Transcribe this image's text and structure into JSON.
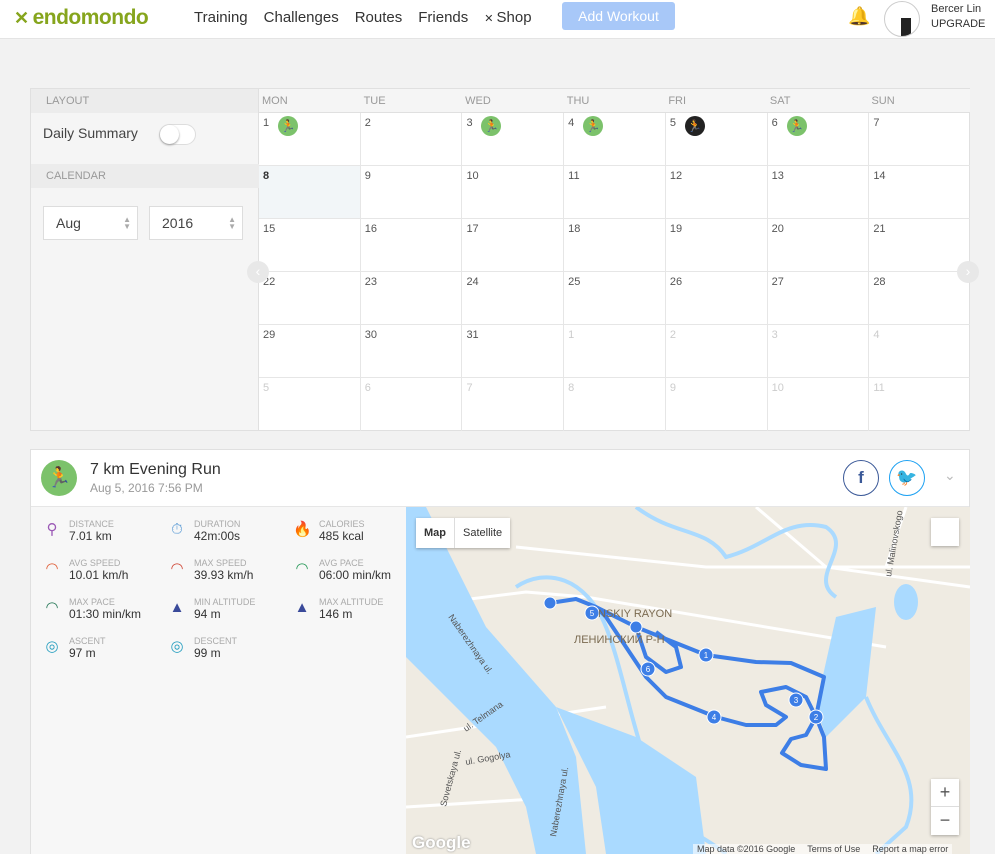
{
  "header": {
    "brand": "endomondo",
    "nav": [
      "Training",
      "Challenges",
      "Routes",
      "Friends",
      "Shop"
    ],
    "add_workout": "Add Workout",
    "user_name": "Bercer Lin",
    "upgrade": "UPGRADE",
    "accent": "#86a51d"
  },
  "sidebar": {
    "layout_label": "LAYOUT",
    "daily_summary": "Daily Summary",
    "daily_summary_on": false,
    "calendar_label": "CALENDAR",
    "month": "Aug",
    "year": "2016"
  },
  "calendar": {
    "days": [
      "MON",
      "TUE",
      "WED",
      "THU",
      "FRI",
      "SAT",
      "SUN"
    ],
    "weeks": [
      [
        {
          "d": "1",
          "w": "green"
        },
        {
          "d": "2"
        },
        {
          "d": "3",
          "w": "green"
        },
        {
          "d": "4",
          "w": "green"
        },
        {
          "d": "5",
          "w": "dark"
        },
        {
          "d": "6",
          "w": "green"
        },
        {
          "d": "7"
        }
      ],
      [
        {
          "d": "8",
          "today": true
        },
        {
          "d": "9"
        },
        {
          "d": "10"
        },
        {
          "d": "11"
        },
        {
          "d": "12"
        },
        {
          "d": "13"
        },
        {
          "d": "14"
        }
      ],
      [
        {
          "d": "15"
        },
        {
          "d": "16"
        },
        {
          "d": "17"
        },
        {
          "d": "18"
        },
        {
          "d": "19"
        },
        {
          "d": "20"
        },
        {
          "d": "21"
        }
      ],
      [
        {
          "d": "22"
        },
        {
          "d": "23"
        },
        {
          "d": "24"
        },
        {
          "d": "25"
        },
        {
          "d": "26"
        },
        {
          "d": "27"
        },
        {
          "d": "28"
        }
      ],
      [
        {
          "d": "29"
        },
        {
          "d": "30"
        },
        {
          "d": "31"
        },
        {
          "d": "1",
          "o": true
        },
        {
          "d": "2",
          "o": true
        },
        {
          "d": "3",
          "o": true
        },
        {
          "d": "4",
          "o": true
        }
      ],
      [
        {
          "d": "5",
          "o": true
        },
        {
          "d": "6",
          "o": true
        },
        {
          "d": "7",
          "o": true
        },
        {
          "d": "8",
          "o": true
        },
        {
          "d": "9",
          "o": true
        },
        {
          "d": "10",
          "o": true
        },
        {
          "d": "11",
          "o": true
        }
      ]
    ]
  },
  "workout": {
    "title": "7 km Evening Run",
    "date": "Aug 5, 2016 7:56 PM",
    "stats": [
      {
        "label": "DISTANCE",
        "value": "7.01 km",
        "icon": "distance-icon",
        "color": "#9b59b6"
      },
      {
        "label": "DURATION",
        "value": "42m:00s",
        "icon": "stopwatch-icon",
        "color": "#5b9bd5"
      },
      {
        "label": "CALORIES",
        "value": "485 kcal",
        "icon": "flame-icon",
        "color": "#f07040"
      },
      {
        "label": "AVG SPEED",
        "value": "10.01 km/h",
        "icon": "speedometer-icon",
        "color": "#e0603a"
      },
      {
        "label": "MAX SPEED",
        "value": "39.93 km/h",
        "icon": "speedometer-icon",
        "color": "#d04a3a"
      },
      {
        "label": "AVG PACE",
        "value": "06:00 min/km",
        "icon": "pace-icon",
        "color": "#2a9a5a"
      },
      {
        "label": "MAX PACE",
        "value": "01:30 min/km",
        "icon": "pace-icon",
        "color": "#2a7a5a"
      },
      {
        "label": "MIN ALTITUDE",
        "value": "94 m",
        "icon": "mountain-icon",
        "color": "#3a4a9a"
      },
      {
        "label": "MAX ALTITUDE",
        "value": "146 m",
        "icon": "mountain-icon",
        "color": "#3a4a9a"
      },
      {
        "label": "ASCENT",
        "value": "97 m",
        "icon": "compass-icon",
        "color": "#2aa0c0"
      },
      {
        "label": "DESCENT",
        "value": "99 m",
        "icon": "compass-icon",
        "color": "#2aa0c0"
      }
    ]
  },
  "map": {
    "type_map": "Map",
    "type_satellite": "Satellite",
    "zoom_in": "+",
    "zoom_out": "−",
    "attribution": "Map data ©2016 Google",
    "terms": "Terms of Use",
    "report": "Report a map error",
    "google": "Google",
    "labels": [
      "Naberezhnaya ul.",
      "ul. Telmana",
      "Sovetskaya ul.",
      "ul. Gogolya",
      "Naberezhnaya ul.",
      "ul. Malinovskogo",
      "NSKIY RAYON",
      "ЛЕНИНСКИЙ Р-Н"
    ],
    "markers": [
      "1",
      "2",
      "3",
      "4",
      "5",
      "6"
    ],
    "route_color": "#3d7ee6"
  }
}
